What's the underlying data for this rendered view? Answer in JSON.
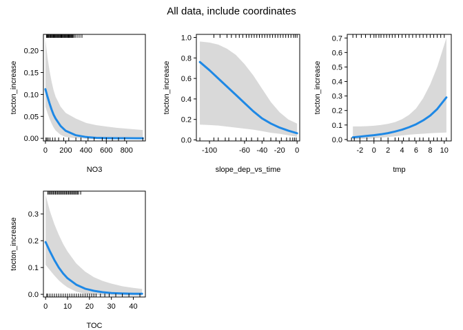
{
  "title": "All data, include coordinates",
  "colors": {
    "line": "#1E88E5",
    "ribbon": "#D9D9D9",
    "axis": "#000000"
  },
  "chart_data": [
    {
      "type": "line",
      "xlabel": "NO3",
      "ylabel": "tocton_increase",
      "xlim": [
        -20,
        985
      ],
      "ylim": [
        -0.006,
        0.237
      ],
      "xticks": [
        0,
        200,
        400,
        600,
        800
      ],
      "yticks": [
        0.0,
        0.05,
        0.1,
        0.15,
        0.2
      ],
      "ytick_labels": [
        "0.00",
        "0.05",
        "0.10",
        "0.15",
        "0.20"
      ],
      "x": [
        0,
        20,
        40,
        60,
        80,
        100,
        150,
        200,
        300,
        400,
        500,
        600,
        700,
        800,
        900,
        960
      ],
      "y": [
        0.112,
        0.095,
        0.08,
        0.066,
        0.054,
        0.045,
        0.028,
        0.017,
        0.007,
        0.003,
        0.001,
        0.0005,
        0.0003,
        0.0002,
        0.0001,
        0.0001
      ],
      "lower": [
        0.072,
        0.058,
        0.045,
        0.034,
        0.025,
        0.018,
        0.008,
        0.003,
        0.0,
        -0.001,
        -0.002,
        -0.002,
        -0.002,
        -0.002,
        -0.002,
        -0.002
      ],
      "upper": [
        0.225,
        0.185,
        0.155,
        0.13,
        0.11,
        0.095,
        0.072,
        0.058,
        0.045,
        0.035,
        0.03,
        0.027,
        0.024,
        0.022,
        0.02,
        0.019
      ],
      "rug_top": [
        10,
        18,
        25,
        32,
        40,
        48,
        55,
        63,
        70,
        78,
        85,
        93,
        100,
        108,
        115,
        123,
        130,
        138,
        145,
        153,
        160,
        168,
        175,
        183,
        190,
        198,
        205,
        213,
        220,
        228,
        235,
        243,
        250,
        258,
        265,
        273,
        285,
        300,
        320,
        340,
        360
      ],
      "rug_bottom": [
        5,
        15,
        28,
        45,
        70,
        95,
        130,
        180,
        230,
        300,
        350,
        420,
        480,
        560,
        600,
        660,
        720,
        780,
        960
      ]
    },
    {
      "type": "line",
      "xlabel": "slope_dep_vs_time",
      "ylabel": "tocton_increase",
      "xlim": [
        -115,
        3
      ],
      "ylim": [
        -0.01,
        1.03
      ],
      "xticks": [
        -100,
        -60,
        -40,
        -20,
        0
      ],
      "yticks": [
        0.0,
        0.2,
        0.4,
        0.6,
        0.8,
        1.0
      ],
      "ytick_labels": [
        "0.0",
        "0.2",
        "0.4",
        "0.6",
        "0.8",
        "1.0"
      ],
      "x": [
        -111,
        -100,
        -90,
        -80,
        -70,
        -60,
        -50,
        -40,
        -30,
        -20,
        -10,
        0
      ],
      "y": [
        0.76,
        0.68,
        0.6,
        0.52,
        0.44,
        0.36,
        0.28,
        0.21,
        0.16,
        0.12,
        0.09,
        0.065
      ],
      "lower": [
        0.15,
        0.145,
        0.14,
        0.13,
        0.12,
        0.11,
        0.1,
        0.085,
        0.07,
        0.06,
        0.045,
        0.03
      ],
      "upper": [
        0.96,
        0.95,
        0.93,
        0.89,
        0.83,
        0.74,
        0.63,
        0.5,
        0.37,
        0.27,
        0.2,
        0.16
      ],
      "rug_top": [
        -95,
        -88,
        -80,
        -75,
        -70,
        -66,
        -62,
        -58,
        -55,
        -52,
        -49,
        -46,
        -43,
        -40,
        -37,
        -34,
        -31,
        -28,
        -25,
        -22,
        -19,
        -16,
        -13,
        -10,
        -7,
        -4,
        -2,
        0
      ],
      "rug_bottom": [
        -111,
        -95,
        -90,
        -82,
        -78,
        -70,
        -64,
        -58,
        -52,
        -45,
        -38,
        -30,
        -24,
        -18,
        -12,
        -8,
        -5,
        -3,
        -1
      ]
    },
    {
      "type": "line",
      "xlabel": "tmp",
      "ylabel": "tocton_increase",
      "xlim": [
        -3.8,
        11
      ],
      "ylim": [
        -0.01,
        0.725
      ],
      "xticks": [
        -2,
        0,
        2,
        4,
        6,
        8,
        10
      ],
      "yticks": [
        0.0,
        0.1,
        0.2,
        0.3,
        0.4,
        0.5,
        0.6,
        0.7
      ],
      "ytick_labels": [
        "0.0",
        "0.1",
        "0.2",
        "0.3",
        "0.4",
        "0.5",
        "0.6",
        "0.7"
      ],
      "x": [
        -3,
        -2,
        -1,
        0,
        1,
        2,
        3,
        4,
        5,
        6,
        7,
        8,
        9,
        10.3
      ],
      "y": [
        0.015,
        0.02,
        0.025,
        0.03,
        0.036,
        0.044,
        0.055,
        0.068,
        0.085,
        0.105,
        0.132,
        0.165,
        0.21,
        0.29
      ],
      "lower": [
        0.0,
        0.002,
        0.004,
        0.008,
        0.012,
        0.017,
        0.022,
        0.028,
        0.033,
        0.037,
        0.04,
        0.043,
        0.046,
        0.048
      ],
      "upper": [
        0.09,
        0.09,
        0.092,
        0.095,
        0.1,
        0.108,
        0.12,
        0.14,
        0.17,
        0.215,
        0.285,
        0.38,
        0.5,
        0.7
      ],
      "rug_top": [
        -3,
        -2.5,
        -1.8,
        -1.2,
        -0.5,
        0,
        0.3,
        0.7,
        1,
        1.4,
        1.8,
        2.2,
        2.6,
        3,
        3.5,
        4,
        4.5,
        5,
        5.5,
        6,
        6.5,
        7,
        7.5,
        8,
        8.5,
        9,
        9.5,
        10
      ],
      "rug_bottom": [
        -3.2,
        -2.8,
        -2,
        -1,
        0,
        1,
        2,
        3,
        3.5,
        4.2,
        5,
        5.8,
        6.5,
        7,
        7.8,
        8.5,
        9,
        9.6,
        10.3
      ]
    },
    {
      "type": "line",
      "xlabel": "TOC",
      "ylabel": "tocton_increase",
      "xlim": [
        -1,
        45.5
      ],
      "ylim": [
        -0.01,
        0.385
      ],
      "xticks": [
        0,
        10,
        20,
        30,
        40
      ],
      "yticks": [
        0.0,
        0.1,
        0.2,
        0.3
      ],
      "ytick_labels": [
        "0.0",
        "0.1",
        "0.2",
        "0.3"
      ],
      "x": [
        0,
        2,
        4,
        6,
        8,
        10,
        14,
        18,
        22,
        26,
        30,
        35,
        40,
        44
      ],
      "y": [
        0.195,
        0.16,
        0.128,
        0.1,
        0.078,
        0.06,
        0.036,
        0.021,
        0.013,
        0.008,
        0.005,
        0.003,
        0.002,
        0.002
      ],
      "lower": [
        0.11,
        0.09,
        0.07,
        0.052,
        0.038,
        0.026,
        0.01,
        0.002,
        -0.002,
        -0.004,
        -0.005,
        -0.005,
        -0.006,
        -0.006
      ],
      "upper": [
        0.37,
        0.31,
        0.262,
        0.222,
        0.188,
        0.16,
        0.115,
        0.085,
        0.064,
        0.05,
        0.04,
        0.03,
        0.024,
        0.02
      ],
      "rug_top": [
        1,
        1.5,
        2,
        2.5,
        3,
        3.5,
        4,
        4.5,
        5,
        5.5,
        6,
        6.5,
        7,
        7.5,
        8,
        8.5,
        9,
        9.5,
        10,
        10.5,
        11,
        11.5,
        12,
        12.5,
        13,
        13.5,
        14,
        14.5,
        15,
        16
      ],
      "rug_bottom": [
        0.5,
        1,
        2,
        3,
        4,
        5,
        6,
        7,
        8,
        9,
        10,
        11,
        12,
        13,
        14,
        15,
        16,
        17,
        18,
        19,
        20,
        21,
        22,
        23,
        25,
        27,
        29,
        32,
        35,
        38,
        43
      ]
    }
  ]
}
